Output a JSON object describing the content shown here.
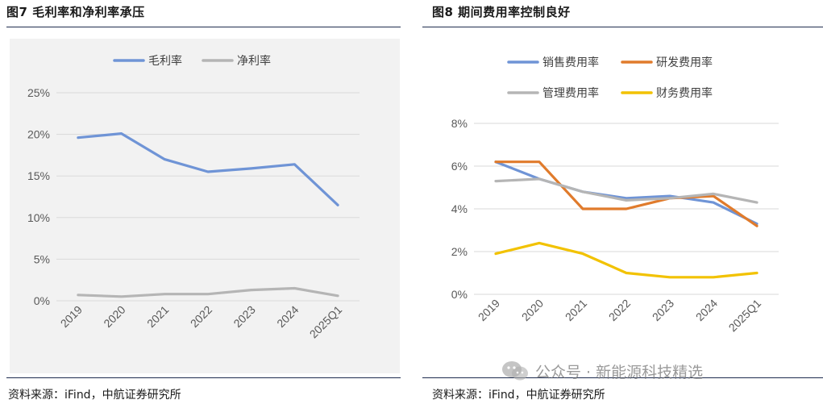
{
  "left_panel": {
    "title": "图7  毛利率和净利率承压",
    "source": "资料来源：iFind，中航证券研究所"
  },
  "right_panel": {
    "title": "图8  期间费用率控制良好",
    "source": "资料来源：iFind，中航证券研究所"
  },
  "watermark": {
    "text": "公众号 · 新能源科技精选",
    "icon": "wechat-icon"
  },
  "chart_data": [
    {
      "type": "line",
      "x": [
        "2019",
        "2020",
        "2021",
        "2022",
        "2023",
        "2024",
        "2025Q1"
      ],
      "y_ticks": [
        "0%",
        "5%",
        "10%",
        "15%",
        "20%",
        "25%"
      ],
      "ylim": [
        0,
        25
      ],
      "grid": true,
      "legend_position": "top",
      "series": [
        {
          "name": "毛利率",
          "color": "#6f94d6",
          "values": [
            19.6,
            20.1,
            17.0,
            15.5,
            15.9,
            16.4,
            11.5
          ]
        },
        {
          "name": "净利率",
          "color": "#b5b5b5",
          "values": [
            0.7,
            0.5,
            0.8,
            0.8,
            1.3,
            1.5,
            0.6
          ]
        }
      ]
    },
    {
      "type": "line",
      "x": [
        "2019",
        "2020",
        "2021",
        "2022",
        "2023",
        "2024",
        "2025Q1"
      ],
      "y_ticks": [
        "0%",
        "2%",
        "4%",
        "6%",
        "8%"
      ],
      "ylim": [
        0,
        8
      ],
      "grid": true,
      "legend_position": "top",
      "series": [
        {
          "name": "销售费用率",
          "color": "#6f94d6",
          "values": [
            6.2,
            5.4,
            4.8,
            4.5,
            4.6,
            4.3,
            3.3
          ]
        },
        {
          "name": "研发费用率",
          "color": "#e07b2c",
          "values": [
            6.2,
            6.2,
            4.0,
            4.0,
            4.5,
            4.6,
            3.2
          ]
        },
        {
          "name": "管理费用率",
          "color": "#b5b5b5",
          "values": [
            5.3,
            5.4,
            4.8,
            4.4,
            4.5,
            4.7,
            4.3
          ]
        },
        {
          "name": "财务费用率",
          "color": "#f2c200",
          "values": [
            1.9,
            2.4,
            1.9,
            1.0,
            0.8,
            0.8,
            1.0
          ]
        }
      ]
    }
  ]
}
